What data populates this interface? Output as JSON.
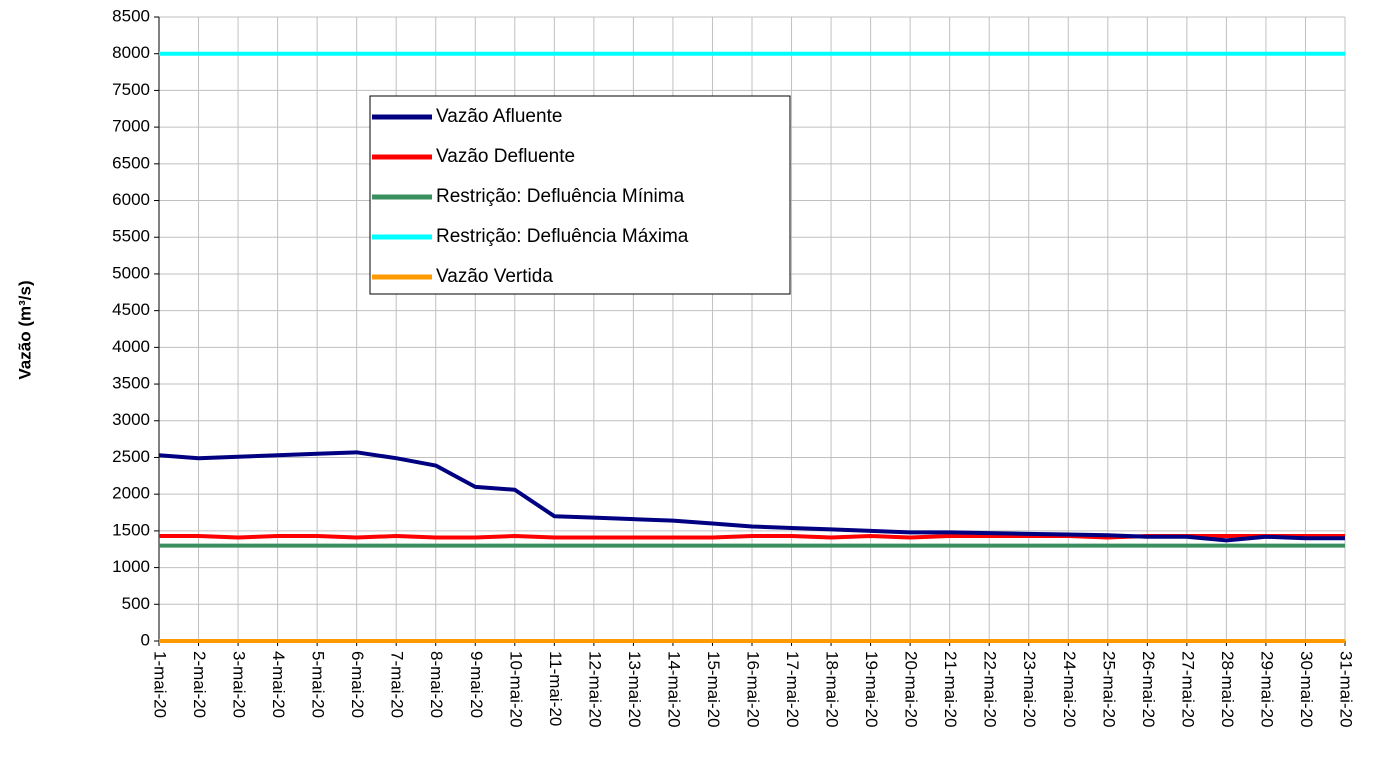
{
  "chart_data": {
    "type": "line",
    "y_label": "Vazão (m³/s)",
    "categories": [
      "1-mai-20",
      "2-mai-20",
      "3-mai-20",
      "4-mai-20",
      "5-mai-20",
      "6-mai-20",
      "7-mai-20",
      "8-mai-20",
      "9-mai-20",
      "10-mai-20",
      "11-mai-20",
      "12-mai-20",
      "13-mai-20",
      "14-mai-20",
      "15-mai-20",
      "16-mai-20",
      "17-mai-20",
      "18-mai-20",
      "19-mai-20",
      "20-mai-20",
      "21-mai-20",
      "22-mai-20",
      "23-mai-20",
      "24-mai-20",
      "25-mai-20",
      "26-mai-20",
      "27-mai-20",
      "28-mai-20",
      "29-mai-20",
      "30-mai-20",
      "31-mai-20"
    ],
    "series": [
      {
        "name": "Vazão Afluente",
        "color": "#000080",
        "values": [
          2530,
          2490,
          2510,
          2530,
          2550,
          2570,
          2490,
          2390,
          2100,
          2060,
          1700,
          1680,
          1660,
          1640,
          1600,
          1560,
          1540,
          1520,
          1500,
          1480,
          1480,
          1470,
          1460,
          1450,
          1440,
          1420,
          1420,
          1370,
          1420,
          1400,
          1400
        ]
      },
      {
        "name": "Vazão Defluente",
        "color": "#ff0000",
        "values": [
          1430,
          1430,
          1410,
          1430,
          1430,
          1410,
          1430,
          1410,
          1410,
          1430,
          1410,
          1410,
          1410,
          1410,
          1410,
          1430,
          1430,
          1410,
          1430,
          1410,
          1430,
          1430,
          1430,
          1430,
          1410,
          1430,
          1430,
          1430,
          1430,
          1430,
          1430
        ]
      },
      {
        "name": "Restrição: Defluência Mínima",
        "color": "#3a8f5e",
        "values": [
          1300,
          1300,
          1300,
          1300,
          1300,
          1300,
          1300,
          1300,
          1300,
          1300,
          1300,
          1300,
          1300,
          1300,
          1300,
          1300,
          1300,
          1300,
          1300,
          1300,
          1300,
          1300,
          1300,
          1300,
          1300,
          1300,
          1300,
          1300,
          1300,
          1300,
          1300
        ]
      },
      {
        "name": "Restrição: Defluência Máxima",
        "color": "#00ffff",
        "values": [
          8000,
          8000,
          8000,
          8000,
          8000,
          8000,
          8000,
          8000,
          8000,
          8000,
          8000,
          8000,
          8000,
          8000,
          8000,
          8000,
          8000,
          8000,
          8000,
          8000,
          8000,
          8000,
          8000,
          8000,
          8000,
          8000,
          8000,
          8000,
          8000,
          8000,
          8000
        ]
      },
      {
        "name": "Vazão Vertida",
        "color": "#ff9900",
        "values": [
          0,
          0,
          0,
          0,
          0,
          0,
          0,
          0,
          0,
          0,
          0,
          0,
          0,
          0,
          0,
          0,
          0,
          0,
          0,
          0,
          0,
          0,
          0,
          0,
          0,
          0,
          0,
          0,
          0,
          0,
          0
        ]
      }
    ],
    "ylim": [
      0,
      8500
    ],
    "yticks": [
      0,
      500,
      1000,
      1500,
      2000,
      2500,
      3000,
      3500,
      4000,
      4500,
      5000,
      5500,
      6000,
      6500,
      7000,
      7500,
      8000,
      8500
    ],
    "grid": true
  }
}
